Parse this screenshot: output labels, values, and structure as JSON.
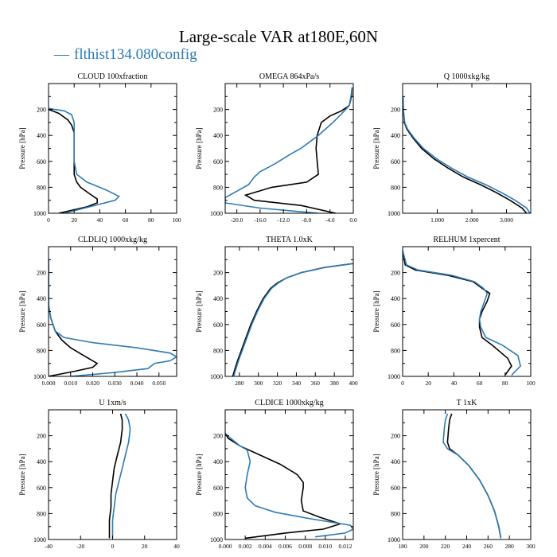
{
  "title": "Large-scale VAR at180E,60N",
  "legend": {
    "marker": "—",
    "label": "flthist134.080config",
    "color": "#2e7ab3"
  },
  "colors": {
    "series_a": "#000000",
    "series_b": "#2e7ab3"
  },
  "y_axis": {
    "label": "Pressure [hPa]",
    "ticks": [
      "200",
      "400",
      "600",
      "800",
      "1000"
    ]
  },
  "chart_data": [
    {
      "type": "line",
      "title": "CLOUD  100xfraction",
      "xlim": [
        0,
        100
      ],
      "xticks": [
        "0",
        "20",
        "40",
        "60",
        "80",
        "100"
      ],
      "xtick_values": [
        0,
        20,
        40,
        60,
        80,
        100
      ],
      "ylim": [
        0,
        1000
      ],
      "ylabel": "Pressure [hPa]",
      "grid": false,
      "series": [
        {
          "color": "#000000",
          "x": [
            0,
            3,
            8,
            15,
            18,
            20,
            20,
            20,
            20,
            22,
            25,
            32,
            38,
            38,
            30,
            8
          ],
          "y": [
            200,
            210,
            230,
            280,
            320,
            380,
            500,
            600,
            700,
            760,
            800,
            850,
            890,
            920,
            950,
            1000
          ]
        },
        {
          "color": "#2e7ab3",
          "x": [
            0,
            5,
            12,
            18,
            20,
            20,
            20,
            20,
            22,
            30,
            45,
            55,
            52,
            40,
            12
          ],
          "y": [
            190,
            200,
            210,
            240,
            300,
            400,
            500,
            600,
            700,
            760,
            820,
            870,
            900,
            930,
            1000
          ]
        }
      ]
    },
    {
      "type": "line",
      "title": "OMEGA  864xPa/s",
      "xlim": [
        -22,
        0
      ],
      "xticks": [
        "-20.0",
        "-16.0",
        "-12.0",
        "-8.0",
        "-4.0",
        "0.0"
      ],
      "xtick_values": [
        -20,
        -16,
        -12,
        -8,
        -4,
        0
      ],
      "ylim": [
        0,
        1000
      ],
      "ylabel": "Pressure [hPa]",
      "grid": false,
      "series": [
        {
          "color": "#000000",
          "x": [
            -0.2,
            -0.3,
            -0.7,
            -2.0,
            -4.0,
            -5.5,
            -6.2,
            -6.4,
            -6.2,
            -6.0,
            -8.0,
            -14.0,
            -18.5,
            -17.0,
            -9.0,
            -3.0
          ],
          "y": [
            30,
            100,
            170,
            210,
            250,
            300,
            400,
            500,
            600,
            700,
            760,
            800,
            860,
            900,
            940,
            1000
          ]
        },
        {
          "color": "#2e7ab3",
          "x": [
            -0.2,
            -0.4,
            -0.7,
            -1.5,
            -3.5,
            -6.0,
            -9.0,
            -11.0,
            -13.5,
            -16.0,
            -17.0,
            -18.0,
            -20.0,
            -22.0,
            -22.0,
            -16.0,
            -6.0
          ],
          "y": [
            30,
            100,
            170,
            210,
            300,
            400,
            500,
            550,
            620,
            680,
            720,
            780,
            830,
            880,
            920,
            960,
            1000
          ]
        }
      ]
    },
    {
      "type": "line",
      "title": "Q  1000xkg/kg",
      "xlim": [
        0,
        3.7
      ],
      "xticks": [
        "1.000",
        "2.000",
        "3.000"
      ],
      "xtick_values": [
        1,
        2,
        3
      ],
      "ylim": [
        0,
        1000
      ],
      "ylabel": "Pressure [hPa]",
      "grid": false,
      "series": [
        {
          "color": "#000000",
          "x": [
            0.01,
            0.02,
            0.05,
            0.12,
            0.3,
            0.55,
            0.9,
            1.3,
            1.75,
            2.25,
            2.7,
            3.1,
            3.45,
            3.58
          ],
          "y": [
            100,
            200,
            300,
            350,
            420,
            500,
            580,
            650,
            720,
            780,
            840,
            900,
            960,
            1000
          ]
        },
        {
          "color": "#2e7ab3",
          "x": [
            0.01,
            0.02,
            0.06,
            0.14,
            0.33,
            0.6,
            0.98,
            1.4,
            1.88,
            2.4,
            2.85,
            3.25,
            3.58,
            3.68
          ],
          "y": [
            100,
            200,
            300,
            350,
            420,
            500,
            580,
            650,
            720,
            780,
            840,
            900,
            960,
            1000
          ]
        }
      ]
    },
    {
      "type": "line",
      "title": "CLDLIQ  1000xkg/kg",
      "xlim": [
        0,
        0.058
      ],
      "xticks": [
        "0.000",
        "0.010",
        "0.020",
        "0.030",
        "0.040",
        "0.050"
      ],
      "xtick_values": [
        0,
        0.01,
        0.02,
        0.03,
        0.04,
        0.05
      ],
      "ylim": [
        0,
        1000
      ],
      "ylabel": "Pressure [hPa]",
      "grid": false,
      "series": [
        {
          "color": "#000000",
          "x": [
            0,
            0,
            0.001,
            0.003,
            0.006,
            0.01,
            0.015,
            0.019,
            0.022,
            0.02,
            0.012,
            0.003,
            0
          ],
          "y": [
            100,
            450,
            550,
            650,
            720,
            780,
            830,
            870,
            900,
            930,
            960,
            990,
            1000
          ]
        },
        {
          "color": "#2e7ab3",
          "x": [
            0,
            0,
            0.001,
            0.003,
            0.007,
            0.02,
            0.04,
            0.055,
            0.058,
            0.055,
            0.048,
            0.045,
            0.03,
            0.01
          ],
          "y": [
            100,
            450,
            550,
            650,
            700,
            740,
            780,
            820,
            850,
            880,
            900,
            940,
            970,
            1000
          ]
        }
      ]
    },
    {
      "type": "line",
      "title": "THETA  1.0xK",
      "xlim": [
        265,
        400
      ],
      "xticks": [
        "280",
        "300",
        "320",
        "340",
        "360",
        "380",
        "400"
      ],
      "xtick_values": [
        280,
        300,
        320,
        340,
        360,
        380,
        400
      ],
      "ylim": [
        0,
        1000
      ],
      "ylabel": "Pressure [hPa]",
      "grid": false,
      "series": [
        {
          "color": "#000000",
          "x": [
            400,
            370,
            345,
            330,
            320,
            313,
            305,
            298,
            292,
            287,
            282,
            278,
            275,
            273
          ],
          "y": [
            130,
            160,
            200,
            240,
            280,
            320,
            400,
            500,
            600,
            700,
            800,
            880,
            950,
            1000
          ]
        },
        {
          "color": "#2e7ab3",
          "x": [
            400,
            370,
            345,
            330,
            321,
            314,
            306,
            299,
            293,
            288,
            283,
            279,
            276,
            274
          ],
          "y": [
            130,
            160,
            200,
            240,
            280,
            320,
            400,
            500,
            600,
            700,
            800,
            880,
            950,
            1000
          ]
        }
      ]
    },
    {
      "type": "line",
      "title": "RELHUM  1xpercent",
      "xlim": [
        0,
        100
      ],
      "xticks": [
        "0",
        "20",
        "40",
        "60",
        "80",
        "100"
      ],
      "xtick_values": [
        0,
        20,
        40,
        60,
        80,
        100
      ],
      "ylim": [
        0,
        1000
      ],
      "ylabel": "Pressure [hPa]",
      "grid": false,
      "series": [
        {
          "color": "#000000",
          "x": [
            0,
            2,
            10,
            35,
            55,
            62,
            68,
            66,
            62,
            60,
            60,
            62,
            70,
            82,
            85,
            80
          ],
          "y": [
            30,
            140,
            180,
            220,
            270,
            320,
            360,
            420,
            500,
            560,
            620,
            700,
            760,
            860,
            920,
            990
          ]
        },
        {
          "color": "#2e7ab3",
          "x": [
            0,
            3,
            12,
            38,
            56,
            63,
            66,
            64,
            61,
            60,
            61,
            65,
            78,
            90,
            92,
            85
          ],
          "y": [
            30,
            140,
            180,
            220,
            270,
            320,
            360,
            420,
            500,
            560,
            620,
            700,
            760,
            840,
            920,
            990
          ]
        }
      ]
    },
    {
      "type": "line",
      "title": "U  1xm/s",
      "xlim": [
        -40,
        40
      ],
      "xticks": [
        "-40",
        "-20",
        "0",
        "20",
        "40"
      ],
      "xtick_values": [
        -40,
        -20,
        0,
        20,
        40
      ],
      "ylim": [
        0,
        1000
      ],
      "ylabel": "Pressure [hPa]",
      "grid": false,
      "series": [
        {
          "color": "#000000",
          "x": [
            5,
            6,
            6,
            5,
            3,
            1,
            0,
            -1,
            -1,
            -2,
            -2
          ],
          "y": [
            30,
            80,
            150,
            250,
            350,
            450,
            550,
            650,
            750,
            850,
            990
          ]
        },
        {
          "color": "#2e7ab3",
          "x": [
            8,
            10,
            11,
            10,
            8,
            6,
            4,
            2,
            1,
            0,
            0
          ],
          "y": [
            30,
            80,
            150,
            250,
            350,
            450,
            550,
            650,
            750,
            850,
            990
          ]
        }
      ]
    },
    {
      "type": "line",
      "title": "CLDICE  1000xkg/kg",
      "xlim": [
        0,
        0.0128
      ],
      "xticks": [
        "0.000",
        "0.002",
        "0.004",
        "0.006",
        "0.008",
        "0.010",
        "0.012"
      ],
      "xtick_values": [
        0,
        0.002,
        0.004,
        0.006,
        0.008,
        0.01,
        0.012
      ],
      "ylim": [
        0,
        1000
      ],
      "ylabel": "Pressure [hPa]",
      "grid": false,
      "series": [
        {
          "color": "#000000",
          "x": [
            0,
            0.0003,
            0.0015,
            0.0035,
            0.0055,
            0.0072,
            0.0078,
            0.0078,
            0.0076,
            0.0078,
            0.0095,
            0.0115,
            0.0098,
            0.006,
            0.002
          ],
          "y": [
            180,
            220,
            280,
            350,
            420,
            500,
            560,
            600,
            700,
            780,
            830,
            880,
            920,
            950,
            990
          ]
        },
        {
          "color": "#2e7ab3",
          "x": [
            0,
            0.0004,
            0.0015,
            0.0022,
            0.0025,
            0.0022,
            0.002,
            0.0022,
            0.003,
            0.005,
            0.0085,
            0.0125,
            0.0128,
            0.012,
            0.009
          ],
          "y": [
            180,
            210,
            280,
            310,
            400,
            500,
            600,
            680,
            740,
            790,
            840,
            890,
            920,
            950,
            980
          ]
        }
      ]
    },
    {
      "type": "line",
      "title": "T  1xK",
      "xlim": [
        180,
        300
      ],
      "xticks": [
        "180",
        "200",
        "220",
        "240",
        "260",
        "280",
        "300"
      ],
      "xtick_values": [
        180,
        200,
        220,
        240,
        260,
        280,
        300
      ],
      "ylim": [
        0,
        1000
      ],
      "ylabel": "Pressure [hPa]",
      "grid": false,
      "series": [
        {
          "color": "#000000",
          "x": [
            226,
            224,
            223,
            222,
            224,
            232,
            242,
            252,
            260,
            266,
            270,
            272
          ],
          "y": [
            30,
            80,
            150,
            250,
            300,
            350,
            430,
            540,
            660,
            780,
            900,
            990
          ]
        },
        {
          "color": "#2e7ab3",
          "x": [
            222,
            220,
            219,
            218,
            222,
            232,
            242,
            252,
            260,
            266,
            270,
            272
          ],
          "y": [
            30,
            80,
            150,
            250,
            300,
            350,
            430,
            540,
            660,
            780,
            900,
            990
          ]
        }
      ]
    }
  ]
}
